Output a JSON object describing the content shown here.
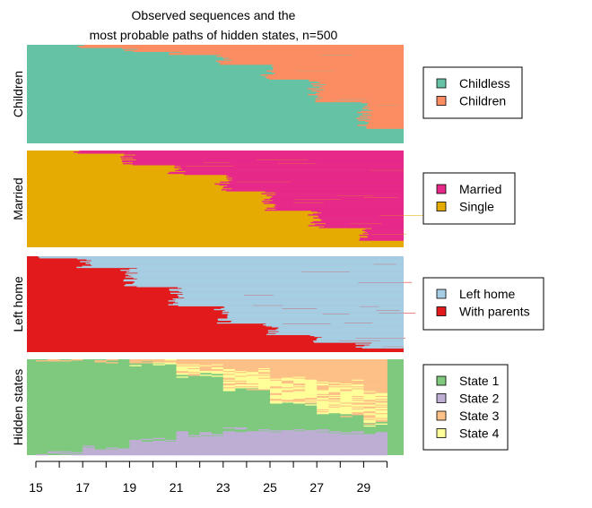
{
  "chart_data": {
    "type": "sequence-index-plot",
    "title_lines": [
      "Observed sequences and the",
      "most probable paths of hidden states, n=500"
    ],
    "x": {
      "range": [
        15,
        30
      ],
      "ticks": [
        15,
        16,
        17,
        18,
        19,
        20,
        21,
        22,
        23,
        24,
        25,
        26,
        27,
        28,
        29,
        30
      ],
      "tick_labels": [
        {
          "value": 15,
          "label": "15"
        },
        {
          "value": 17,
          "label": "17"
        },
        {
          "value": 19,
          "label": "19"
        },
        {
          "value": 21,
          "label": "21"
        },
        {
          "value": 23,
          "label": "23"
        },
        {
          "value": 25,
          "label": "25"
        },
        {
          "value": 27,
          "label": "27"
        },
        {
          "value": 29,
          "label": "29"
        }
      ]
    },
    "n_sequences": 500,
    "panels": [
      {
        "ylabel": "Children",
        "legend": [
          {
            "label": "Childless",
            "color": "#66C2A5"
          },
          {
            "label": "Children",
            "color": "#FC8D62"
          }
        ],
        "profile": [
          {
            "start": 15,
            "share": 0.0
          },
          {
            "start": 17,
            "share": 0.03
          },
          {
            "start": 19,
            "share": 0.07
          },
          {
            "start": 21,
            "share": 0.1
          },
          {
            "start": 23,
            "share": 0.2
          },
          {
            "start": 25,
            "share": 0.35
          },
          {
            "start": 27,
            "share": 0.58
          },
          {
            "start": 29,
            "share": 0.85
          }
        ]
      },
      {
        "ylabel": "Married",
        "legend": [
          {
            "label": "Married",
            "color": "#E7298A"
          },
          {
            "label": "Single",
            "color": "#E6AB02"
          }
        ],
        "profile": [
          {
            "start": 15,
            "share": 0.0
          },
          {
            "start": 17,
            "share": 0.03
          },
          {
            "start": 19,
            "share": 0.15
          },
          {
            "start": 21,
            "share": 0.25
          },
          {
            "start": 23,
            "share": 0.42
          },
          {
            "start": 25,
            "share": 0.62
          },
          {
            "start": 27,
            "share": 0.8
          },
          {
            "start": 29,
            "share": 0.93
          }
        ]
      },
      {
        "ylabel": "Left home",
        "legend": [
          {
            "label": "Left home",
            "color": "#A6CEE3"
          },
          {
            "label": "With parents",
            "color": "#E31A1C"
          }
        ],
        "profile": [
          {
            "start": 15,
            "share": 0.02
          },
          {
            "start": 17,
            "share": 0.12
          },
          {
            "start": 19,
            "share": 0.32
          },
          {
            "start": 21,
            "share": 0.52
          },
          {
            "start": 23,
            "share": 0.7
          },
          {
            "start": 25,
            "share": 0.82
          },
          {
            "start": 27,
            "share": 0.9
          },
          {
            "start": 29,
            "share": 0.96
          }
        ]
      },
      {
        "ylabel": "Hidden states",
        "legend": [
          {
            "label": "State 1",
            "color": "#7FC97F"
          },
          {
            "label": "State 2",
            "color": "#BEAED4"
          },
          {
            "label": "State 3",
            "color": "#FDC086"
          },
          {
            "label": "State 4",
            "color": "#FFFF99"
          }
        ],
        "profile": [
          {
            "start": 15,
            "shares": [
              0.98,
              0.02,
              0.0,
              0.0
            ]
          },
          {
            "start": 17,
            "shares": [
              0.92,
              0.07,
              0.01,
              0.0
            ]
          },
          {
            "start": 19,
            "shares": [
              0.8,
              0.15,
              0.03,
              0.02
            ]
          },
          {
            "start": 21,
            "shares": [
              0.62,
              0.22,
              0.07,
              0.09
            ]
          },
          {
            "start": 23,
            "shares": [
              0.42,
              0.26,
              0.12,
              0.2
            ]
          },
          {
            "start": 25,
            "shares": [
              0.28,
              0.26,
              0.18,
              0.28
            ]
          },
          {
            "start": 27,
            "shares": [
              0.18,
              0.24,
              0.24,
              0.34
            ]
          },
          {
            "start": 29,
            "shares": [
              0.1,
              0.22,
              0.34,
              0.34
            ]
          }
        ]
      }
    ]
  }
}
